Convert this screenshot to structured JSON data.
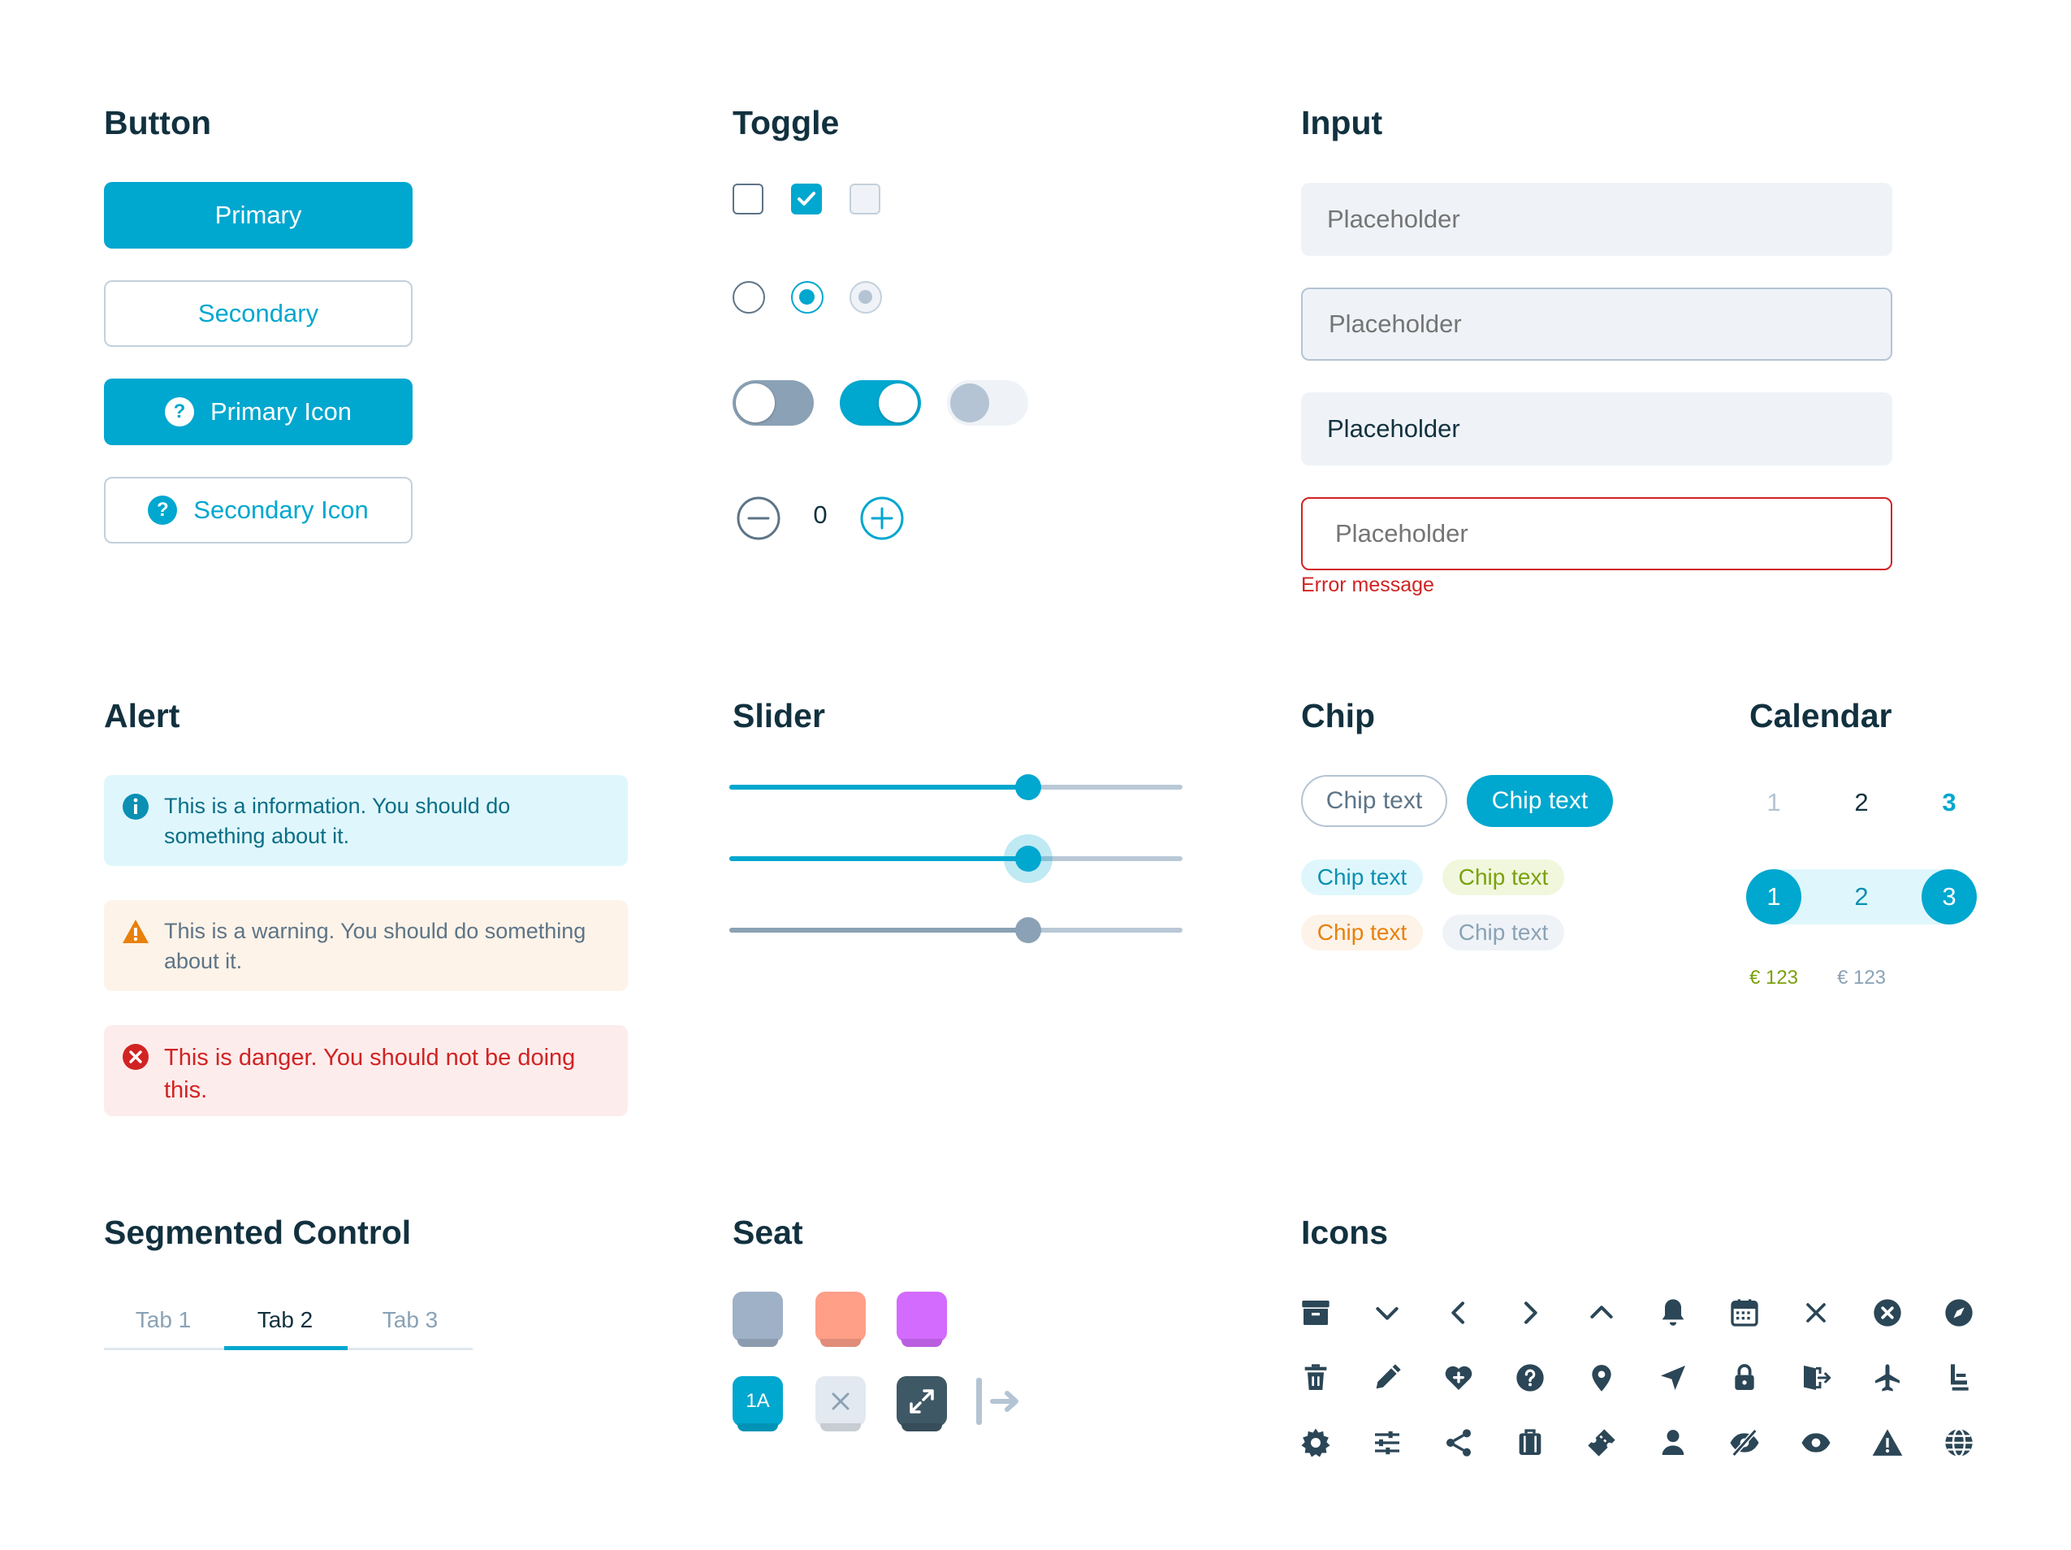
{
  "colors": {
    "accent": "#00a7cf",
    "text": "#12313f",
    "muted": "#8aa2b6",
    "error": "#d12323",
    "warning": "#e8800c",
    "success": "#7ba10d"
  },
  "button": {
    "title": "Button",
    "primary": "Primary",
    "secondary": "Secondary",
    "primary_icon": "Primary Icon",
    "secondary_icon": "Secondary Icon",
    "icon_glyph": "?"
  },
  "toggle": {
    "title": "Toggle",
    "stepper_value": "0"
  },
  "input": {
    "title": "Input",
    "placeholder": "Placeholder",
    "filled_value": "Placeholder",
    "error_message": "Error message"
  },
  "alert": {
    "title": "Alert",
    "info": "This is a information. You should do something about it.",
    "warning": "This is a warning. You should do something about it.",
    "danger": "This is danger. You should not be doing this."
  },
  "slider": {
    "title": "Slider",
    "value": 0.66
  },
  "chip": {
    "title": "Chip",
    "outline": "Chip text",
    "filled": "Chip text",
    "blue": "Chip text",
    "green": "Chip text",
    "orange": "Chip text",
    "grey": "Chip text"
  },
  "calendar": {
    "title": "Calendar",
    "row1": [
      "1",
      "2",
      "3"
    ],
    "row2": [
      "1",
      "2",
      "3"
    ],
    "prices": [
      "€ 123",
      "€ 123"
    ]
  },
  "segmented": {
    "title": "Segmented Control",
    "tabs": [
      "Tab 1",
      "Tab 2",
      "Tab 3"
    ],
    "selected": "Tab 2"
  },
  "seat": {
    "title": "Seat",
    "seat_label": "1A"
  },
  "icons": {
    "title": "Icons",
    "row1": [
      "archive-icon",
      "chevron-down-icon",
      "chevron-left-icon",
      "chevron-right-icon",
      "chevron-up-icon",
      "bell-icon",
      "calendar-icon",
      "close-icon",
      "close-circle-icon",
      "compass-icon"
    ],
    "row2": [
      "trash-icon",
      "pencil-icon",
      "heart-plus-icon",
      "help-circle-icon",
      "map-pin-icon",
      "navigation-icon",
      "lock-icon",
      "exit-door-icon",
      "airplane-icon",
      "seat-icon"
    ],
    "row3": [
      "settings-icon",
      "sliders-icon",
      "share-icon",
      "luggage-icon",
      "ticket-icon",
      "user-icon",
      "eye-off-icon",
      "eye-icon",
      "warning-icon",
      "globe-icon"
    ]
  }
}
